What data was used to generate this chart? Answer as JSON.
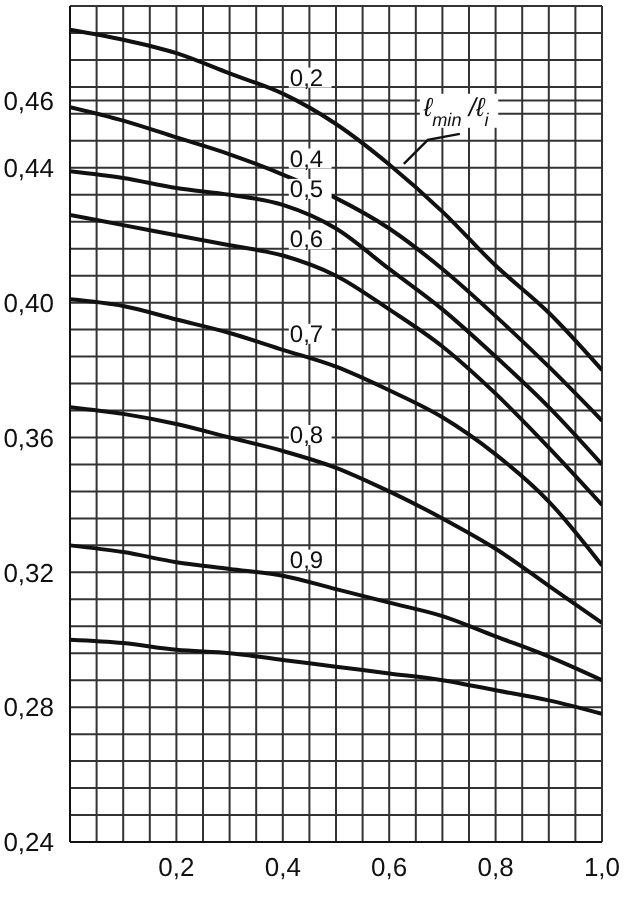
{
  "chart_data": {
    "type": "line",
    "x": [
      0,
      0.1,
      0.2,
      0.3,
      0.4,
      0.5,
      0.6,
      0.7,
      0.8,
      0.9,
      1.0
    ],
    "series": [
      {
        "name": "0,2",
        "color": "#111111",
        "values": [
          0.481,
          0.478,
          0.474,
          0.468,
          0.462,
          0.453,
          0.441,
          0.427,
          0.411,
          0.397,
          0.38
        ]
      },
      {
        "name": "0,4",
        "color": "#111111",
        "values": [
          0.458,
          0.454,
          0.449,
          0.444,
          0.438,
          0.431,
          0.422,
          0.41,
          0.396,
          0.381,
          0.365
        ]
      },
      {
        "name": "0,5",
        "color": "#111111",
        "values": [
          0.439,
          0.437,
          0.434,
          0.432,
          0.429,
          0.422,
          0.41,
          0.398,
          0.384,
          0.369,
          0.352
        ]
      },
      {
        "name": "0,6",
        "color": "#111111",
        "values": [
          0.426,
          0.423,
          0.42,
          0.417,
          0.414,
          0.408,
          0.398,
          0.387,
          0.373,
          0.357,
          0.34
        ]
      },
      {
        "name": "0,7",
        "color": "#111111",
        "values": [
          0.401,
          0.399,
          0.395,
          0.391,
          0.386,
          0.381,
          0.374,
          0.366,
          0.355,
          0.341,
          0.322
        ]
      },
      {
        "name": "0,8",
        "color": "#111111",
        "values": [
          0.369,
          0.367,
          0.364,
          0.36,
          0.356,
          0.351,
          0.344,
          0.336,
          0.327,
          0.316,
          0.305
        ]
      },
      {
        "name": "0,9",
        "color": "#111111",
        "values": [
          0.328,
          0.326,
          0.323,
          0.321,
          0.319,
          0.315,
          0.311,
          0.307,
          0.301,
          0.295,
          0.288
        ]
      },
      {
        "color": "#111111",
        "values": [
          0.3,
          0.299,
          0.297,
          0.296,
          0.294,
          0.292,
          0.29,
          0.288,
          0.285,
          0.282,
          0.278
        ]
      }
    ],
    "xlim": [
      0,
      1.0
    ],
    "xticks": [
      {
        "value": 0,
        "label": null
      },
      {
        "value": 0.05,
        "label": null
      },
      {
        "value": 0.1,
        "label": null
      },
      {
        "value": 0.15,
        "label": null
      },
      {
        "value": 0.2,
        "label": "0,2"
      },
      {
        "value": 0.25,
        "label": null
      },
      {
        "value": 0.3,
        "label": null
      },
      {
        "value": 0.35,
        "label": null
      },
      {
        "value": 0.4,
        "label": "0,4"
      },
      {
        "value": 0.45,
        "label": null
      },
      {
        "value": 0.5,
        "label": null
      },
      {
        "value": 0.55,
        "label": null
      },
      {
        "value": 0.6,
        "label": "0,6"
      },
      {
        "value": 0.65,
        "label": null
      },
      {
        "value": 0.7,
        "label": null
      },
      {
        "value": 0.75,
        "label": null
      },
      {
        "value": 0.8,
        "label": "0,8"
      },
      {
        "value": 0.85,
        "label": null
      },
      {
        "value": 0.9,
        "label": null
      },
      {
        "value": 0.95,
        "label": null
      },
      {
        "value": 1.0,
        "label": "1,0"
      }
    ],
    "ylim": [
      0.24,
      0.488
    ],
    "yticks": [
      {
        "value": 0.24,
        "label": "0,24"
      },
      {
        "value": 0.248,
        "label": null
      },
      {
        "value": 0.256,
        "label": null
      },
      {
        "value": 0.264,
        "label": null
      },
      {
        "value": 0.272,
        "label": null
      },
      {
        "value": 0.28,
        "label": "0,28"
      },
      {
        "value": 0.288,
        "label": null
      },
      {
        "value": 0.296,
        "label": null
      },
      {
        "value": 0.304,
        "label": null
      },
      {
        "value": 0.312,
        "label": null
      },
      {
        "value": 0.32,
        "label": "0,32"
      },
      {
        "value": 0.328,
        "label": null
      },
      {
        "value": 0.336,
        "label": null
      },
      {
        "value": 0.344,
        "label": null
      },
      {
        "value": 0.352,
        "label": null
      },
      {
        "value": 0.36,
        "label": "0,36"
      },
      {
        "value": 0.368,
        "label": null
      },
      {
        "value": 0.376,
        "label": null
      },
      {
        "value": 0.384,
        "label": null
      },
      {
        "value": 0.392,
        "label": null
      },
      {
        "value": 0.4,
        "label": "0,40"
      },
      {
        "value": 0.408,
        "label": null
      },
      {
        "value": 0.416,
        "label": null
      },
      {
        "value": 0.424,
        "label": null
      },
      {
        "value": 0.432,
        "label": null
      },
      {
        "value": 0.44,
        "label": "0,44"
      },
      {
        "value": 0.448,
        "label": null
      },
      {
        "value": 0.456,
        "label": null
      },
      {
        "value": 0.464,
        "label": null
      },
      {
        "value": 0.472,
        "label": null
      },
      {
        "value": 0.46,
        "label": "0,46"
      },
      {
        "value": 0.48,
        "label": null
      },
      {
        "value": 0.488,
        "label": null
      }
    ],
    "grid": true,
    "legend": false,
    "marker": "none",
    "line_style": "solid",
    "annotations": [
      {
        "text": "ℓ$_{min}$/ℓ$_{i}$",
        "x": 0.62,
        "y": 0.44
      }
    ]
  }
}
